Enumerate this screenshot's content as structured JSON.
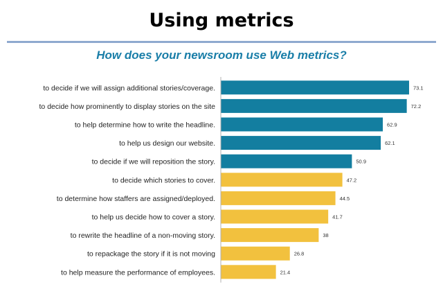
{
  "header": {
    "title": "Using metrics",
    "subtitle": "How does your newsroom use Web metrics?"
  },
  "colors": {
    "title_rule": "#8fa9cf",
    "subtitle": "#1a7ea8",
    "bar_primary": "#137ea0",
    "bar_secondary": "#f2c13e",
    "axis": "#b0b0b0"
  },
  "chart_data": {
    "type": "bar",
    "orientation": "horizontal",
    "title": "How does your newsroom use Web metrics?",
    "xlabel": "",
    "ylabel": "",
    "xlim": [
      0,
      75
    ],
    "grid": false,
    "categories": [
      "to decide if we will assign additional stories/coverage.",
      "to decide how prominently to display stories on the site",
      "to help determine how to write the headline.",
      "to help us design our website.",
      "to decide if we will reposition the story.",
      "to decide which stories to cover.",
      "to determine how staffers are assigned/deployed.",
      "to help us decide how to cover a story.",
      "to rewrite the headline of a non-moving story.",
      "to repackage the story if it is not moving",
      "to help measure the performance of employees."
    ],
    "values": [
      73.1,
      72.2,
      62.9,
      62.1,
      50.9,
      47.2,
      44.5,
      41.7,
      38,
      26.8,
      21.4
    ],
    "value_labels": [
      "73.1",
      "72.2",
      "62.9",
      "62.1",
      "50.9",
      "47.2",
      "44.5",
      "41.7",
      "38",
      "26.8",
      "21.4"
    ],
    "bar_colors": [
      "teal",
      "teal",
      "teal",
      "teal",
      "teal",
      "gold",
      "gold",
      "gold",
      "gold",
      "gold",
      "gold"
    ]
  }
}
